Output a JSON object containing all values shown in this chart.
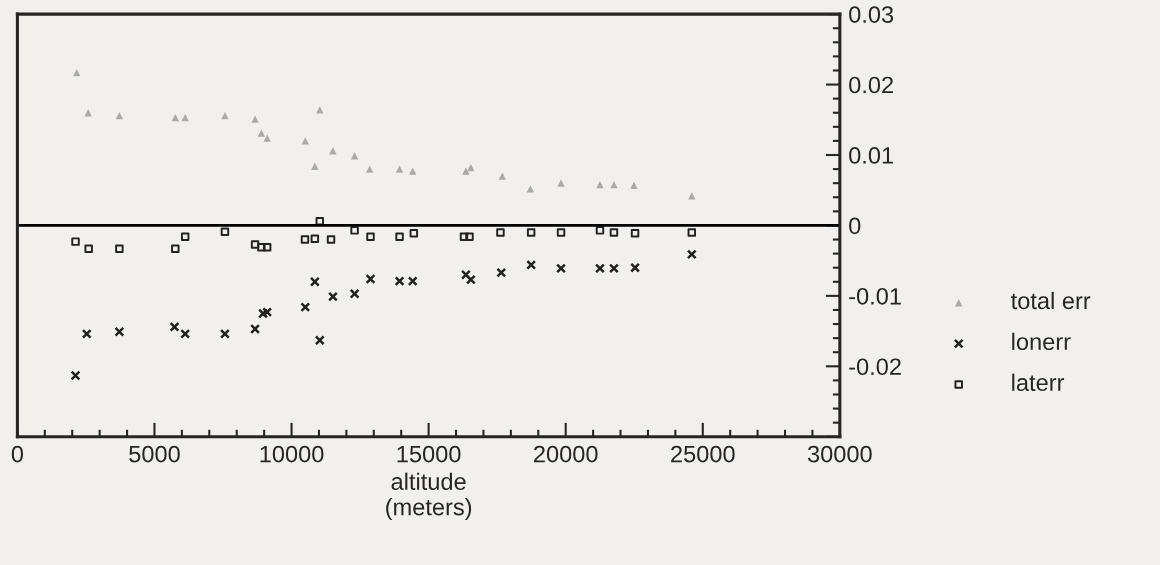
{
  "chart_data": {
    "type": "scatter",
    "xlabel": "altitude\n(meters)",
    "xlim": [
      0,
      30000
    ],
    "xticks": [
      0,
      5000,
      10000,
      15000,
      20000,
      25000,
      30000
    ],
    "ylim": [
      -0.03,
      0.03
    ],
    "yticks": [
      {
        "value": -0.03,
        "label": null
      },
      -0.02,
      -0.01,
      0,
      0.01,
      0.02,
      0.03
    ],
    "grid": false,
    "legend": "right",
    "ref_lines": [
      {
        "axis": "y",
        "value": 0,
        "color": "#000000"
      }
    ],
    "series": [
      {
        "name": "total err",
        "color": "#aaaaaa",
        "marker": "triangle",
        "x": [
          2164,
          2580,
          3720,
          5760,
          6120,
          7570,
          8670,
          8900,
          9110,
          10500,
          10850,
          11030,
          11510,
          12300,
          12850,
          13940,
          14420,
          16360,
          16540,
          17690,
          18710,
          19830,
          21250,
          21760,
          22490,
          24600
        ],
        "values": [
          0.0217,
          0.016,
          0.0156,
          0.0153,
          0.0153,
          0.0156,
          0.0151,
          0.0131,
          0.0124,
          0.012,
          0.0084,
          0.0164,
          0.0106,
          0.0099,
          0.008,
          0.008,
          0.0077,
          0.0077,
          0.0082,
          0.007,
          0.0052,
          0.006,
          0.0058,
          0.0058,
          0.0057,
          0.0042
        ]
      },
      {
        "name": "lonerr",
        "color": "#222222",
        "marker": "cross",
        "x": [
          2120,
          2530,
          3720,
          5730,
          6120,
          7570,
          8670,
          8960,
          9110,
          10500,
          10850,
          11030,
          11510,
          12300,
          12880,
          13940,
          14420,
          16360,
          16540,
          17650,
          18740,
          19830,
          21250,
          21760,
          22530,
          24600
        ],
        "values": [
          -0.0213,
          -0.0154,
          -0.0151,
          -0.0144,
          -0.0154,
          -0.0154,
          -0.0147,
          -0.0125,
          -0.0123,
          -0.0116,
          -0.008,
          -0.0163,
          -0.0101,
          -0.0097,
          -0.0076,
          -0.0079,
          -0.0079,
          -0.007,
          -0.0077,
          -0.0067,
          -0.0056,
          -0.0061,
          -0.0061,
          -0.0061,
          -0.006,
          -0.0041
        ]
      },
      {
        "name": "laterr",
        "color": "#222222",
        "marker": "square",
        "x": [
          2120,
          2600,
          3720,
          5760,
          6120,
          7570,
          8670,
          8900,
          9110,
          10490,
          10850,
          11030,
          11440,
          12300,
          12880,
          13940,
          14460,
          16290,
          16490,
          17620,
          18740,
          19830,
          21250,
          21760,
          22530,
          24600
        ],
        "values": [
          -0.0023,
          -0.0033,
          -0.0033,
          -0.0033,
          -0.0016,
          -0.0009,
          -0.0027,
          -0.0031,
          -0.0031,
          -0.002,
          -0.0019,
          0.0006,
          -0.002,
          -0.0007,
          -0.0016,
          -0.0016,
          -0.0011,
          -0.0016,
          -0.0016,
          -0.001,
          -0.001,
          -0.001,
          -0.0007,
          -0.001,
          -0.0011,
          -0.001
        ]
      }
    ]
  }
}
